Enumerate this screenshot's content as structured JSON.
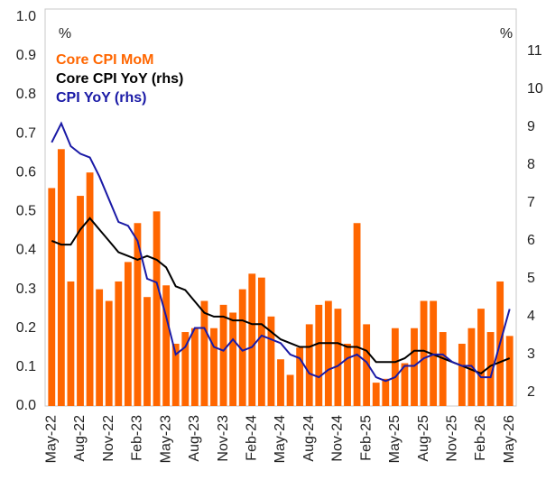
{
  "chart_data": {
    "type": "bar-line",
    "left_unit": "%",
    "right_unit": "%",
    "categories": [
      "May-22",
      null,
      null,
      "Aug-22",
      null,
      null,
      "Nov-22",
      null,
      null,
      "Feb-23",
      null,
      null,
      "May-23",
      null,
      null,
      "Aug-23",
      null,
      null,
      "Nov-23",
      null,
      null,
      "Feb-24",
      null,
      null,
      "May-24",
      null,
      null,
      "Aug-24",
      null,
      null,
      "Nov-24",
      null,
      null,
      "Feb-25",
      null,
      null,
      "May-25",
      null,
      null,
      "Aug-25",
      null,
      null,
      "Nov-25",
      null,
      null,
      "Feb-26",
      null,
      null,
      "May-26"
    ],
    "series": [
      {
        "name": "Core CPI MoM",
        "color": "#ff6600",
        "kind": "bar",
        "values": [
          0.56,
          0.66,
          0.32,
          0.54,
          0.6,
          0.3,
          0.27,
          0.32,
          0.37,
          0.47,
          0.28,
          0.5,
          0.31,
          0.16,
          0.19,
          0.2,
          0.27,
          0.2,
          0.26,
          0.24,
          0.3,
          0.34,
          0.33,
          0.23,
          0.12,
          0.08,
          0.15,
          0.21,
          0.26,
          0.27,
          0.25,
          0.16,
          0.47,
          0.21,
          0.06,
          0.07,
          0.2,
          0.11,
          0.2,
          0.27,
          0.27,
          0.19,
          null,
          0.16,
          0.2,
          0.25,
          0.19,
          0.32,
          0.18
        ]
      },
      {
        "name": "Core CPI YoY (rhs)",
        "color": "#000000",
        "kind": "line",
        "axis": "y2",
        "values": [
          6.0,
          5.9,
          5.9,
          6.3,
          6.6,
          6.3,
          6.0,
          5.7,
          5.6,
          5.5,
          5.6,
          5.5,
          5.3,
          4.8,
          4.7,
          4.4,
          4.1,
          4.0,
          4.0,
          3.9,
          3.9,
          3.8,
          3.8,
          3.6,
          3.4,
          3.3,
          3.2,
          3.2,
          3.3,
          3.3,
          3.3,
          3.2,
          3.2,
          3.1,
          2.8,
          2.8,
          2.8,
          2.9,
          3.1,
          3.1,
          3.0,
          2.9,
          2.8,
          2.7,
          2.6,
          2.5,
          2.7,
          2.8,
          2.9
        ]
      },
      {
        "name": "CPI YoY (rhs)",
        "color": "#1a1aa6",
        "kind": "line",
        "axis": "y2",
        "values": [
          8.6,
          9.1,
          8.5,
          8.3,
          8.2,
          7.7,
          7.1,
          6.5,
          6.4,
          6.0,
          5.0,
          4.9,
          4.0,
          3.0,
          3.2,
          3.7,
          3.7,
          3.2,
          3.1,
          3.4,
          3.1,
          3.2,
          3.5,
          3.4,
          3.3,
          3.0,
          2.9,
          2.5,
          2.4,
          2.6,
          2.7,
          2.9,
          3.0,
          2.8,
          2.4,
          2.3,
          2.4,
          2.7,
          2.7,
          2.9,
          3.0,
          3.0,
          2.8,
          2.7,
          2.7,
          2.4,
          2.4,
          3.3,
          4.2
        ]
      }
    ],
    "ylim": [
      0,
      1.02
    ],
    "yticks": [
      {
        "value": 0,
        "label": "0.0"
      },
      0.1,
      0.2,
      0.3,
      0.4,
      0.5,
      0.6,
      0.7,
      0.8,
      0.9,
      {
        "value": 1,
        "label": "1.0"
      }
    ],
    "y2lim": [
      1.64,
      12.12
    ],
    "y2ticks": [
      2,
      3,
      4,
      5,
      6,
      7,
      8,
      9,
      10,
      11
    ],
    "grid": false
  }
}
